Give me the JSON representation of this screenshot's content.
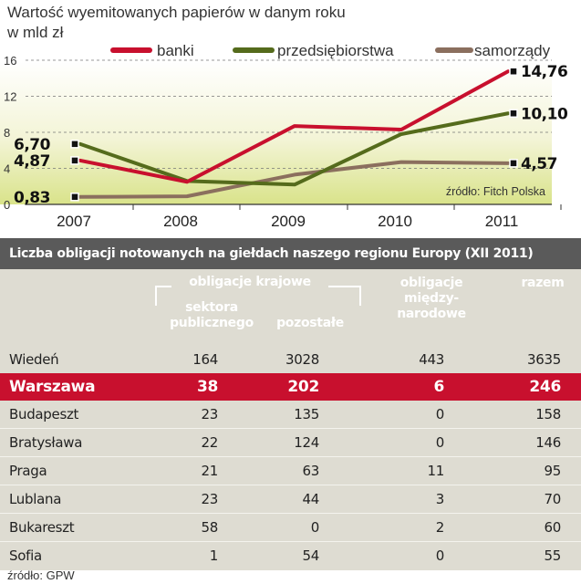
{
  "chart_data": [
    {
      "type": "line",
      "title": "Wartość wyemitowanych papierów w danym roku",
      "ylabel": "w mld zł",
      "x": [
        "2007",
        "2008",
        "2009",
        "2010",
        "2011"
      ],
      "series": [
        {
          "name": "banki",
          "color": "#c8102e",
          "values": [
            4.87,
            2.5,
            8.7,
            8.3,
            14.76
          ]
        },
        {
          "name": "przedsiębiorstwa",
          "color": "#556b1c",
          "values": [
            6.7,
            2.6,
            2.2,
            7.8,
            10.1
          ]
        },
        {
          "name": "samorządy",
          "color": "#8b6f5e",
          "values": [
            0.83,
            0.9,
            3.3,
            4.7,
            4.57
          ]
        }
      ],
      "yticks": [
        0,
        4,
        8,
        12,
        16
      ],
      "ylim": [
        0,
        16
      ],
      "data_labels": [
        {
          "text": "6,70",
          "year": "2007",
          "series": "przedsiębiorstwa"
        },
        {
          "text": "4,87",
          "year": "2007",
          "series": "banki"
        },
        {
          "text": "0,83",
          "year": "2007",
          "series": "samorządy"
        },
        {
          "text": "14,76",
          "year": "2011",
          "series": "banki"
        },
        {
          "text": "10,10",
          "year": "2011",
          "series": "przedsiębiorstwa"
        },
        {
          "text": "4,57",
          "year": "2011",
          "series": "samorządy"
        }
      ],
      "source": "źródło: Fitch Polska"
    },
    {
      "type": "table",
      "title": "Liczba obligacji notowanych na giełdach naszego regionu Europy (XII 2011)",
      "headers": {
        "group": "obligacje krajowe",
        "public": [
          "sektora",
          "publicznego"
        ],
        "other": "pozostałe",
        "international": [
          "obligacje",
          "między-",
          "narodowe"
        ],
        "total": "razem"
      },
      "rows": [
        {
          "city": "Wiedeń",
          "public": "164",
          "other": "3028",
          "international": "443",
          "total": "3635"
        },
        {
          "city": "Warszawa",
          "public": "38",
          "other": "202",
          "international": "6",
          "total": "246",
          "highlight": true
        },
        {
          "city": "Budapeszt",
          "public": "23",
          "other": "135",
          "international": "0",
          "total": "158"
        },
        {
          "city": "Bratysława",
          "public": "22",
          "other": "124",
          "international": "0",
          "total": "146"
        },
        {
          "city": "Praga",
          "public": "21",
          "other": "63",
          "international": "11",
          "total": "95"
        },
        {
          "city": "Lublana",
          "public": "23",
          "other": "44",
          "international": "3",
          "total": "70"
        },
        {
          "city": "Bukareszt",
          "public": "58",
          "other": "0",
          "international": "2",
          "total": "60"
        },
        {
          "city": "Sofia",
          "public": "1",
          "other": "54",
          "international": "0",
          "total": "55"
        }
      ],
      "source": "źródło: GPW"
    }
  ]
}
